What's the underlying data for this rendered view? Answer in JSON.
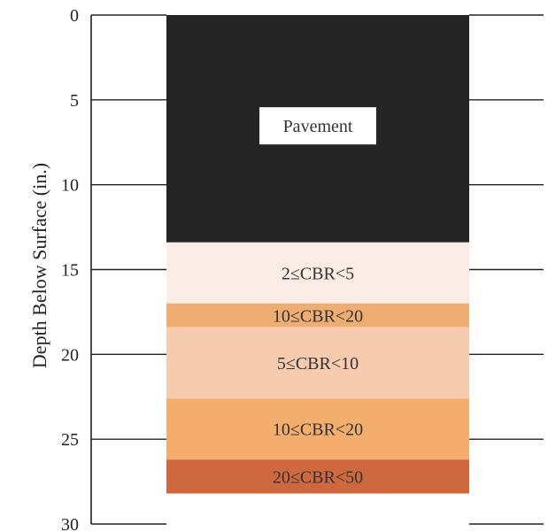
{
  "chart_data": {
    "type": "bar",
    "orientation": "stacked-depth-profile",
    "ylabel": "Depth Below Surface (in.)",
    "ylim": [
      0,
      30
    ],
    "y_inverted": true,
    "yticks": [
      0,
      5,
      10,
      15,
      20,
      25,
      30
    ],
    "grid": false,
    "layers": [
      {
        "label": "Pavement",
        "top": 0,
        "bottom": 13.4,
        "color": "#252525",
        "label_box": true
      },
      {
        "label": "2≤CBR<5",
        "top": 13.4,
        "bottom": 17.0,
        "color": "#fbece6",
        "label_box": false
      },
      {
        "label": "10≤CBR<20",
        "top": 17.0,
        "bottom": 18.4,
        "color": "#f0ad71",
        "label_box": false
      },
      {
        "label": "5≤CBR<10",
        "top": 18.4,
        "bottom": 22.6,
        "color": "#f6cbae",
        "label_box": false
      },
      {
        "label": "10≤CBR<20",
        "top": 22.6,
        "bottom": 26.2,
        "color": "#f3ad6d",
        "label_box": false
      },
      {
        "label": "20≤CBR<50",
        "top": 26.2,
        "bottom": 28.2,
        "color": "#d0683f",
        "label_box": false
      }
    ]
  }
}
